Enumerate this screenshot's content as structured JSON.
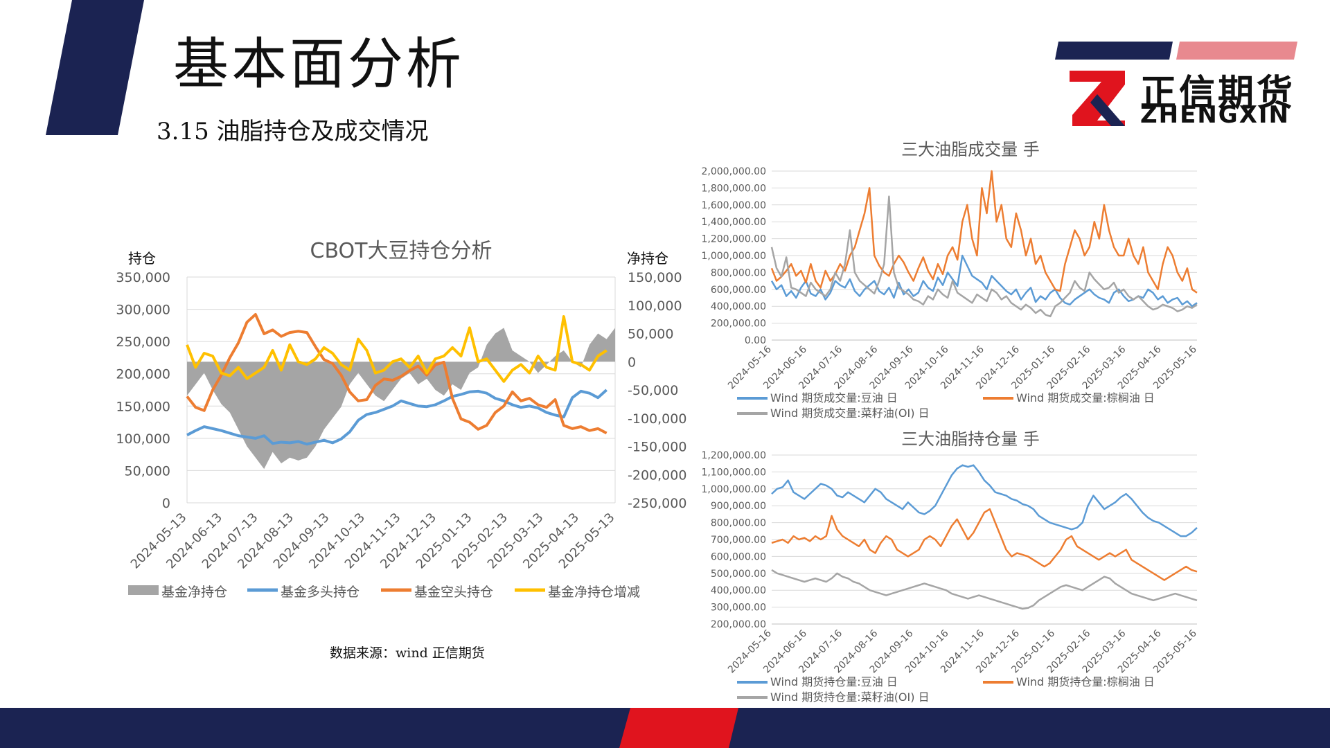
{
  "header": {
    "title": "基本面分析",
    "subtitle": "3.15   油脂持仓及成交情况",
    "logo_cn": "正信期货",
    "logo_en": "ZHENGXIN"
  },
  "footer": {
    "source": "数据来源：wind 正信期货"
  },
  "colors": {
    "navy": "#1b2352",
    "red": "#e0141e",
    "pink": "#e8898f",
    "blue": "#5b9bd5",
    "orange": "#ed7d31",
    "gray": "#a5a5a5",
    "yellow": "#ffc000"
  },
  "chart_data": [
    {
      "type": "area+line",
      "title": "CBOT大豆持仓分析",
      "ylabel_left": "持仓",
      "ylabel_right": "净持仓",
      "ylim_left": [
        0,
        350000
      ],
      "ylim_right": [
        -250000,
        150000
      ],
      "yticks_left": [
        "350,000",
        "300,000",
        "250,000",
        "200,000",
        "150,000",
        "100,000",
        "50,000",
        "0"
      ],
      "yticks_right": [
        "150,000",
        "100,000",
        "50,000",
        "0",
        "-50,000",
        "-100,000",
        "-150,000",
        "-200,000",
        "-250,000"
      ],
      "x_ticks": [
        "2024-05-13",
        "2024-06-13",
        "2024-07-13",
        "2024-08-13",
        "2024-09-13",
        "2024-10-13",
        "2024-11-13",
        "2024-12-13",
        "2025-01-13",
        "2025-02-13",
        "2025-03-13",
        "2025-04-13",
        "2025-05-13"
      ],
      "legend_position": "bottom",
      "series": [
        {
          "name": "基金净持仓",
          "kind": "area",
          "axis": "right",
          "color": "#a5a5a5",
          "values": [
            -60000,
            -40000,
            -20000,
            -50000,
            -75000,
            -90000,
            -120000,
            -150000,
            -170000,
            -190000,
            -160000,
            -180000,
            -170000,
            -175000,
            -170000,
            -150000,
            -120000,
            -100000,
            -80000,
            -40000,
            -20000,
            -40000,
            -60000,
            -70000,
            -50000,
            -30000,
            -20000,
            -40000,
            -30000,
            -50000,
            -60000,
            -40000,
            -50000,
            -20000,
            -10000,
            30000,
            50000,
            60000,
            20000,
            10000,
            0,
            -20000,
            -5000,
            10000,
            20000,
            0,
            -10000,
            30000,
            50000,
            40000,
            60000
          ]
        },
        {
          "name": "基金多头持仓",
          "kind": "line",
          "axis": "left",
          "color": "#5b9bd5",
          "values": [
            105000,
            112000,
            118000,
            115000,
            112000,
            108000,
            104000,
            102000,
            100000,
            104000,
            92000,
            94000,
            93000,
            95000,
            91000,
            94000,
            97000,
            93000,
            99000,
            110000,
            128000,
            137000,
            140000,
            145000,
            150000,
            158000,
            154000,
            150000,
            149000,
            152000,
            158000,
            165000,
            168000,
            172000,
            173000,
            170000,
            162000,
            158000,
            152000,
            148000,
            150000,
            147000,
            140000,
            136000,
            133000,
            163000,
            173000,
            170000,
            163000,
            175000
          ]
        },
        {
          "name": "基金空头持仓",
          "kind": "line",
          "axis": "left",
          "color": "#ed7d31",
          "values": [
            165000,
            148000,
            143000,
            175000,
            198000,
            225000,
            248000,
            280000,
            292000,
            262000,
            268000,
            258000,
            264000,
            266000,
            264000,
            242000,
            222000,
            216000,
            198000,
            172000,
            158000,
            160000,
            182000,
            192000,
            190000,
            196000,
            205000,
            212000,
            198000,
            214000,
            218000,
            162000,
            130000,
            125000,
            114000,
            120000,
            140000,
            150000,
            172000,
            158000,
            162000,
            152000,
            148000,
            160000,
            120000,
            115000,
            118000,
            112000,
            115000,
            108000
          ]
        },
        {
          "name": "基金净持仓增减",
          "kind": "line",
          "axis": "right",
          "color": "#ffc000",
          "values": [
            30000,
            -10000,
            15000,
            10000,
            -20000,
            -25000,
            -10000,
            -30000,
            -20000,
            -10000,
            20000,
            -15000,
            30000,
            0,
            -5000,
            5000,
            25000,
            15000,
            -5000,
            -15000,
            40000,
            20000,
            -20000,
            -15000,
            0,
            5000,
            -10000,
            10000,
            -20000,
            5000,
            10000,
            25000,
            10000,
            60000,
            0,
            5000,
            -15000,
            -35000,
            -15000,
            -5000,
            -20000,
            10000,
            -10000,
            -15000,
            80000,
            0,
            -5000,
            -15000,
            10000,
            20000
          ]
        }
      ]
    },
    {
      "type": "line",
      "title": "三大油脂成交量    手",
      "ylim": [
        0,
        2000000
      ],
      "yticks": [
        "2,000,000.00",
        "1,800,000.00",
        "1,600,000.00",
        "1,400,000.00",
        "1,200,000.00",
        "1,000,000.00",
        "800,000.00",
        "600,000.00",
        "400,000.00",
        "200,000.00",
        "0.00"
      ],
      "x_ticks": [
        "2024-05-16",
        "2024-06-16",
        "2024-07-16",
        "2024-08-16",
        "2024-09-16",
        "2024-10-16",
        "2024-11-16",
        "2024-12-16",
        "2025-01-16",
        "2025-02-16",
        "2025-03-16",
        "2025-04-16",
        "2025-05-16"
      ],
      "legend_position": "bottom",
      "series": [
        {
          "name": "Wind 期货成交量:豆油 日",
          "color": "#5b9bd5",
          "values": [
            700000,
            600000,
            650000,
            520000,
            580000,
            500000,
            620000,
            700000,
            550000,
            520000,
            600000,
            480000,
            560000,
            700000,
            650000,
            620000,
            720000,
            580000,
            520000,
            600000,
            650000,
            700000,
            580000,
            540000,
            620000,
            500000,
            680000,
            540000,
            600000,
            520000,
            560000,
            700000,
            620000,
            580000,
            740000,
            650000,
            800000,
            720000,
            640000,
            1000000,
            880000,
            760000,
            720000,
            680000,
            600000,
            760000,
            700000,
            640000,
            580000,
            540000,
            600000,
            480000,
            560000,
            620000,
            450000,
            520000,
            480000,
            560000,
            600000,
            500000,
            440000,
            420000,
            480000,
            520000,
            560000,
            600000,
            540000,
            500000,
            480000,
            440000,
            560000,
            600000,
            520000,
            460000,
            480000,
            520000,
            500000,
            600000,
            560000,
            480000,
            520000,
            440000,
            480000,
            500000,
            420000,
            460000,
            400000,
            440000
          ]
        },
        {
          "name": "Wind 期货成交量:棕榈油 日",
          "color": "#ed7d31",
          "values": [
            850000,
            700000,
            750000,
            820000,
            900000,
            760000,
            820000,
            680000,
            900000,
            700000,
            620000,
            820000,
            700000,
            780000,
            900000,
            820000,
            1000000,
            1100000,
            1300000,
            1500000,
            1800000,
            1000000,
            880000,
            800000,
            760000,
            900000,
            1000000,
            920000,
            800000,
            700000,
            850000,
            980000,
            820000,
            720000,
            900000,
            780000,
            1000000,
            1100000,
            950000,
            1400000,
            1600000,
            1200000,
            1000000,
            1800000,
            1500000,
            2000000,
            1400000,
            1600000,
            1200000,
            1100000,
            1500000,
            1300000,
            1000000,
            1200000,
            900000,
            1000000,
            800000,
            700000,
            600000,
            580000,
            900000,
            1100000,
            1300000,
            1200000,
            1000000,
            1100000,
            1400000,
            1200000,
            1600000,
            1300000,
            1100000,
            1000000,
            1000000,
            1200000,
            1000000,
            900000,
            1100000,
            800000,
            700000,
            600000,
            900000,
            1100000,
            1000000,
            800000,
            700000,
            850000,
            600000,
            560000
          ]
        },
        {
          "name": "Wind 期货成交量:菜籽油(OI) 日",
          "color": "#a5a5a5",
          "values": [
            1100000,
            850000,
            750000,
            980000,
            620000,
            600000,
            560000,
            520000,
            680000,
            600000,
            560000,
            520000,
            600000,
            800000,
            700000,
            900000,
            1300000,
            800000,
            700000,
            650000,
            600000,
            550000,
            700000,
            900000,
            1700000,
            800000,
            620000,
            580000,
            540000,
            480000,
            460000,
            420000,
            520000,
            480000,
            600000,
            540000,
            500000,
            700000,
            560000,
            520000,
            480000,
            440000,
            540000,
            500000,
            460000,
            600000,
            560000,
            480000,
            520000,
            440000,
            400000,
            360000,
            420000,
            380000,
            320000,
            360000,
            300000,
            280000,
            400000,
            440000,
            500000,
            560000,
            700000,
            620000,
            580000,
            800000,
            720000,
            660000,
            600000,
            620000,
            680000,
            560000,
            600000,
            520000,
            480000,
            520000,
            460000,
            400000,
            360000,
            380000,
            420000,
            400000,
            380000,
            340000,
            360000,
            400000,
            380000,
            420000
          ]
        }
      ]
    },
    {
      "type": "line",
      "title": "三大油脂持仓量    手",
      "ylim": [
        200000,
        1200000
      ],
      "yticks": [
        "1,200,000.00",
        "1,100,000.00",
        "1,000,000.00",
        "900,000.00",
        "800,000.00",
        "700,000.00",
        "600,000.00",
        "500,000.00",
        "400,000.00",
        "300,000.00",
        "200,000.00"
      ],
      "x_ticks": [
        "2024-05-16",
        "2024-06-16",
        "2024-07-16",
        "2024-08-16",
        "2024-09-16",
        "2024-10-16",
        "2024-11-16",
        "2024-12-16",
        "2025-01-16",
        "2025-02-16",
        "2025-03-16",
        "2025-04-16",
        "2025-05-16"
      ],
      "legend_position": "bottom",
      "series": [
        {
          "name": "Wind 期货持仓量:豆油 日",
          "color": "#5b9bd5",
          "values": [
            970000,
            1000000,
            1010000,
            1050000,
            980000,
            960000,
            940000,
            970000,
            1000000,
            1030000,
            1020000,
            1000000,
            960000,
            950000,
            980000,
            960000,
            940000,
            920000,
            960000,
            1000000,
            980000,
            940000,
            920000,
            900000,
            880000,
            920000,
            890000,
            860000,
            850000,
            870000,
            900000,
            960000,
            1020000,
            1080000,
            1120000,
            1140000,
            1130000,
            1140000,
            1100000,
            1050000,
            1020000,
            980000,
            970000,
            960000,
            940000,
            930000,
            910000,
            900000,
            880000,
            840000,
            820000,
            800000,
            790000,
            780000,
            770000,
            760000,
            770000,
            800000,
            900000,
            960000,
            920000,
            880000,
            900000,
            920000,
            950000,
            970000,
            940000,
            900000,
            860000,
            830000,
            810000,
            800000,
            780000,
            760000,
            740000,
            720000,
            720000,
            740000,
            770000
          ]
        },
        {
          "name": "Wind 期货持仓量:棕榈油 日",
          "color": "#ed7d31",
          "values": [
            680000,
            690000,
            700000,
            680000,
            720000,
            700000,
            710000,
            690000,
            720000,
            700000,
            720000,
            840000,
            760000,
            720000,
            700000,
            680000,
            660000,
            700000,
            640000,
            620000,
            680000,
            720000,
            700000,
            640000,
            620000,
            600000,
            620000,
            640000,
            700000,
            720000,
            700000,
            660000,
            720000,
            780000,
            820000,
            760000,
            700000,
            740000,
            800000,
            860000,
            880000,
            800000,
            720000,
            640000,
            600000,
            620000,
            610000,
            600000,
            580000,
            560000,
            540000,
            560000,
            600000,
            640000,
            700000,
            720000,
            660000,
            640000,
            620000,
            600000,
            580000,
            600000,
            620000,
            600000,
            620000,
            640000,
            580000,
            560000,
            540000,
            520000,
            500000,
            480000,
            460000,
            480000,
            500000,
            520000,
            540000,
            520000,
            510000
          ]
        },
        {
          "name": "Wind 期货持仓量:菜籽油(OI) 日",
          "color": "#a5a5a5",
          "values": [
            520000,
            500000,
            490000,
            480000,
            470000,
            460000,
            450000,
            460000,
            470000,
            460000,
            450000,
            470000,
            500000,
            480000,
            470000,
            450000,
            440000,
            420000,
            400000,
            390000,
            380000,
            370000,
            380000,
            390000,
            400000,
            410000,
            420000,
            430000,
            440000,
            430000,
            420000,
            410000,
            400000,
            380000,
            370000,
            360000,
            350000,
            360000,
            370000,
            360000,
            350000,
            340000,
            330000,
            320000,
            310000,
            300000,
            290000,
            295000,
            310000,
            340000,
            360000,
            380000,
            400000,
            420000,
            430000,
            420000,
            410000,
            400000,
            420000,
            440000,
            460000,
            480000,
            470000,
            440000,
            420000,
            400000,
            380000,
            370000,
            360000,
            350000,
            340000,
            350000,
            360000,
            370000,
            380000,
            370000,
            360000,
            350000,
            340000
          ]
        }
      ]
    }
  ]
}
